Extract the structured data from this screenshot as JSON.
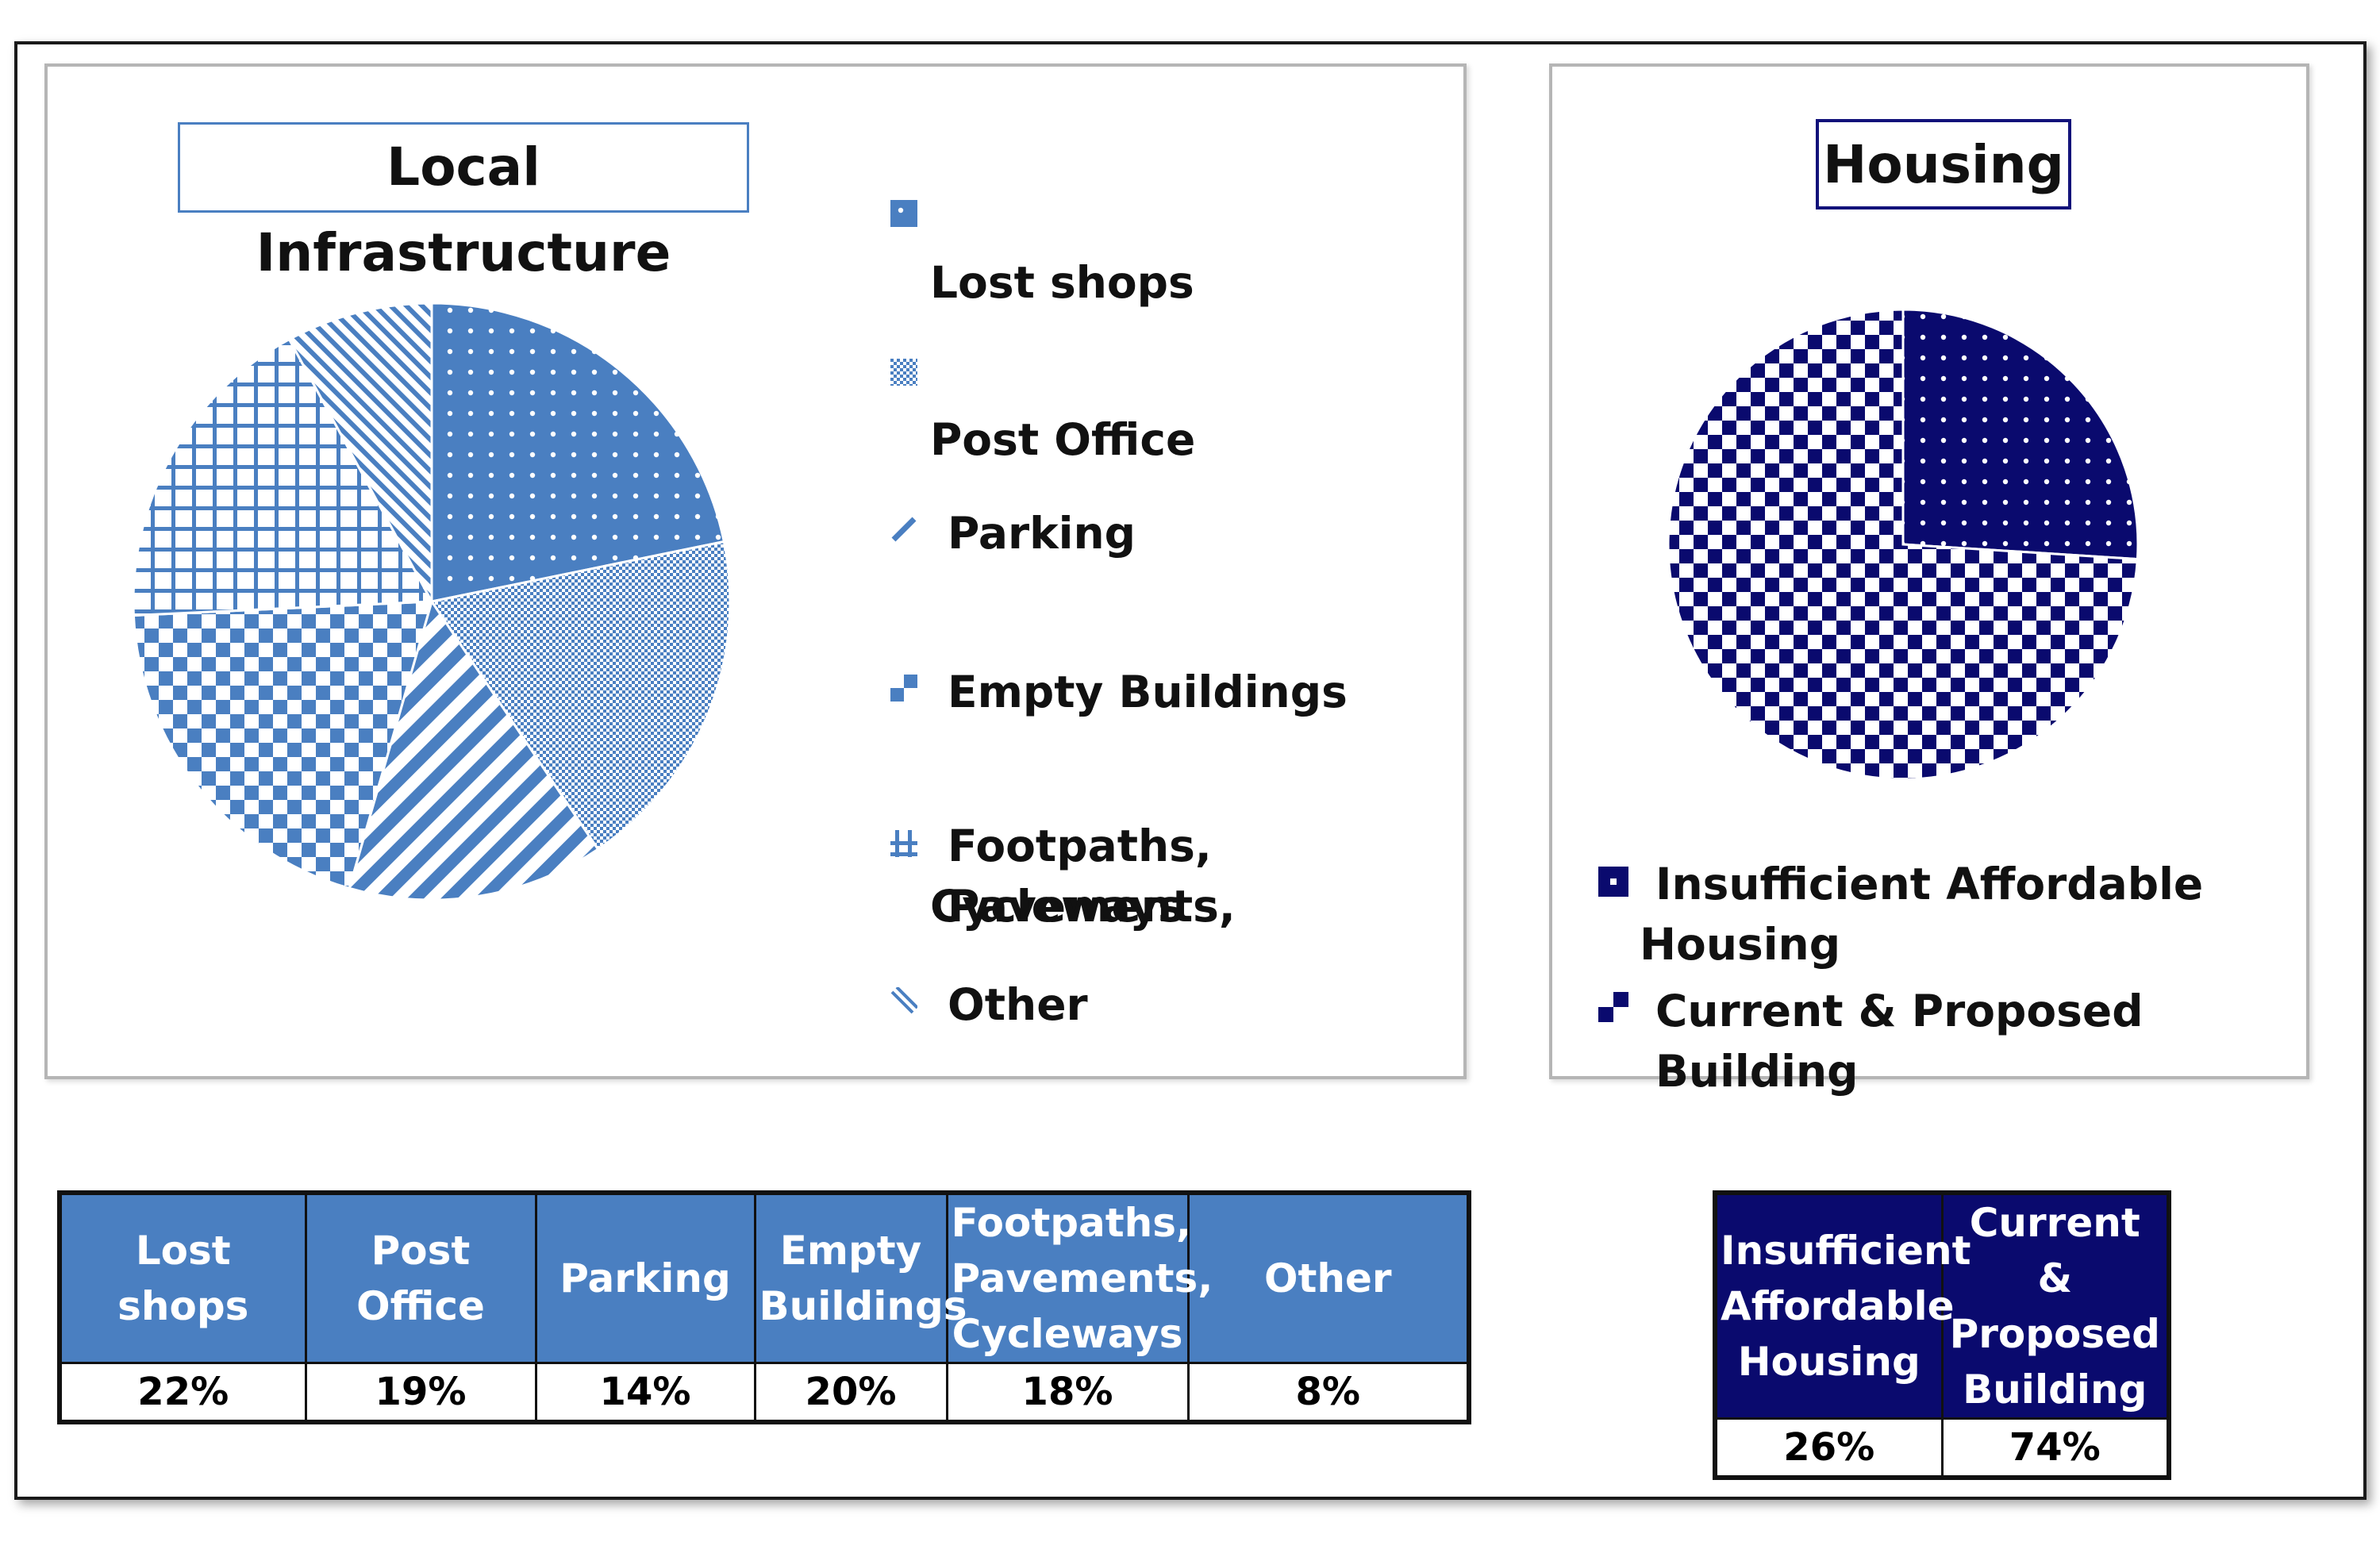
{
  "colors": {
    "infra_accent": "#4a7fc1",
    "housing_accent": "#0a0a6e",
    "frame": "#1a1a1a",
    "panel_border": "#b5b5b5"
  },
  "chart_data": [
    {
      "type": "pie",
      "title": "Local Infrastructure",
      "categories": [
        "Lost shops",
        "Post Office",
        "Parking",
        "Empty Buildings",
        "Footpaths, Pavements, Cycleways",
        "Other"
      ],
      "values": [
        22,
        19,
        14,
        20,
        18,
        8
      ],
      "value_labels": [
        "22%",
        "19%",
        "14%",
        "20%",
        "18%",
        "8%"
      ],
      "legend_placement": "right",
      "patterns": [
        "dots-icon",
        "fine-grid-icon",
        "diagonal-stripes-icon",
        "checker-icon",
        "grid-icon",
        "back-diagonal-icon"
      ]
    },
    {
      "type": "pie",
      "title": "Housing",
      "categories": [
        "Insufficient Affordable Housing",
        "Current & Proposed Building"
      ],
      "values": [
        26,
        74
      ],
      "value_labels": [
        "26%",
        "74%"
      ],
      "legend_placement": "bottom",
      "patterns": [
        "dots-icon",
        "checker-icon"
      ]
    }
  ],
  "legend_left": {
    "lost_shops": "Lost shops",
    "post_office": "Post Office",
    "parking": "Parking",
    "empty_buildings": "Empty Buildings",
    "footpaths_line1": "Footpaths, Pavements,",
    "footpaths_line2": "Cycleways",
    "other": "Other"
  },
  "legend_right": {
    "insufficient_line1": "Insufficient Affordable",
    "insufficient_line2": "Housing",
    "current": "Current & Proposed Building"
  },
  "table_left": {
    "headers": [
      "Lost shops",
      "Post Office",
      "Parking",
      "Empty\nBuildings",
      "Footpaths,\nPavements,\nCycleways",
      "Other"
    ],
    "values": [
      "22%",
      "19%",
      "14%",
      "20%",
      "18%",
      "8%"
    ]
  },
  "table_right": {
    "headers": [
      "Insufficient\nAffordable\nHousing",
      "Current &\nProposed\nBuilding"
    ],
    "values": [
      "26%",
      "74%"
    ]
  }
}
